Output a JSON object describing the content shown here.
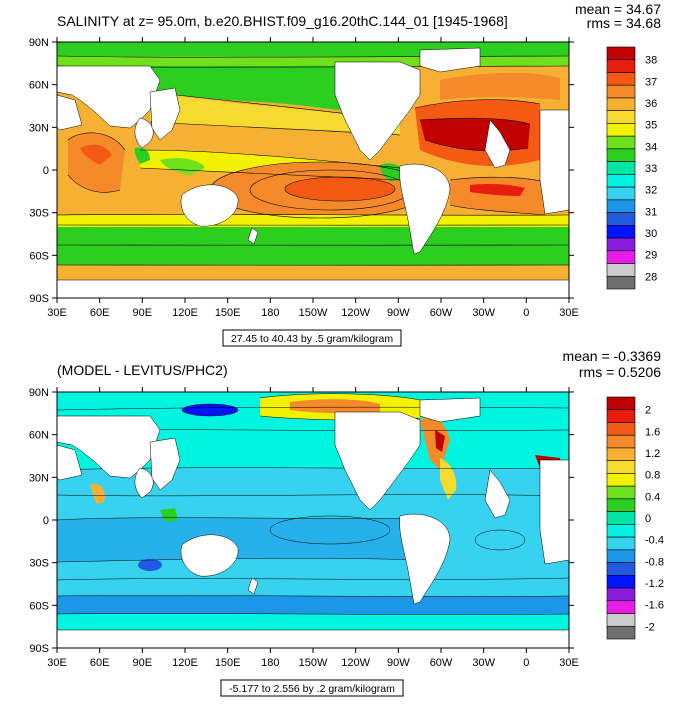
{
  "panels": [
    {
      "id": "top",
      "title": "SALINITY at z=  95.0m, b.e20.BHIST.f09_g16.20thC.144_01 [1945-1968]",
      "mean_text": "mean = 34.67",
      "rms_text": "rms = 34.68",
      "range_text": "27.45 to 40.43 by .5 gram/kilogram",
      "lat_labels": [
        "90N",
        "60N",
        "30N",
        "0",
        "30S",
        "60S",
        "90S"
      ],
      "lon_labels": [
        "30E",
        "60E",
        "90E",
        "120E",
        "150E",
        "180",
        "150W",
        "120W",
        "90W",
        "60W",
        "30W",
        "0",
        "30E"
      ],
      "colorbar": {
        "labels": [
          "38",
          "37",
          "36",
          "35",
          "34",
          "33",
          "32",
          "31",
          "30",
          "29",
          "28"
        ],
        "colors": [
          "#c00000",
          "#e81c0c",
          "#f45a14",
          "#f58a2a",
          "#f6b034",
          "#f5da30",
          "#f2f200",
          "#6fe01c",
          "#2ccf20",
          "#00e6a6",
          "#00f5e0",
          "#36d2f0",
          "#1c96e6",
          "#1f5ae0",
          "#0014ff",
          "#8a1cde",
          "#e81ce6",
          "#cccccc",
          "#6f6f6f"
        ]
      }
    },
    {
      "id": "bottom",
      "title": "(MODEL - LEVITUS/PHC2)",
      "mean_text": "mean = -0.3369",
      "rms_text": "rms = 0.5206",
      "range_text": "-5.177 to 2.556 by .2 gram/kilogram",
      "lat_labels": [
        "90N",
        "60N",
        "30N",
        "0",
        "30S",
        "60S",
        "90S"
      ],
      "lon_labels": [
        "30E",
        "60E",
        "90E",
        "120E",
        "150E",
        "180",
        "150W",
        "120W",
        "90W",
        "60W",
        "30W",
        "0",
        "30E"
      ],
      "colorbar": {
        "labels": [
          "2",
          "1.6",
          "1.2",
          "0.8",
          "0.4",
          "0",
          "-0.4",
          "-0.8",
          "-1.2",
          "-1.6",
          "-2"
        ],
        "colors": [
          "#c00000",
          "#e81c0c",
          "#f45a14",
          "#f58a2a",
          "#f6b034",
          "#f5da30",
          "#f2f200",
          "#6fe01c",
          "#2ccf20",
          "#00e6a6",
          "#00f5e0",
          "#36d2f0",
          "#1c96e6",
          "#1f5ae0",
          "#0014ff",
          "#8a1cde",
          "#e81ce6",
          "#cccccc",
          "#6f6f6f"
        ]
      }
    }
  ]
}
